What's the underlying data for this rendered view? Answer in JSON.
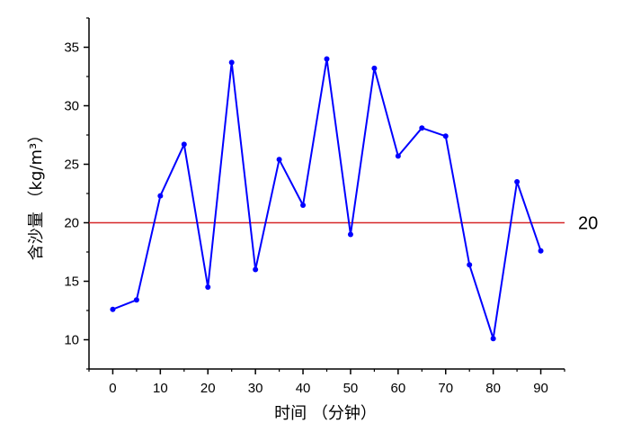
{
  "chart_data": {
    "type": "line",
    "x": [
      0,
      5,
      10,
      15,
      20,
      25,
      30,
      35,
      40,
      45,
      50,
      55,
      60,
      65,
      70,
      75,
      80,
      85,
      90
    ],
    "series": [
      {
        "values": [
          12.6,
          13.4,
          22.3,
          26.7,
          14.5,
          33.7,
          16.0,
          25.4,
          21.5,
          34.0,
          19.0,
          33.2,
          25.7,
          28.1,
          27.4,
          16.4,
          10.1,
          23.5,
          17.6
        ],
        "color": "#0000ff"
      }
    ],
    "xlabel": "时间 （分钟）",
    "ylabel": "含沙量 （kg/m³）",
    "xlim": [
      -5,
      95
    ],
    "ylim": [
      7.5,
      37.5
    ],
    "x_ticks": [
      0,
      10,
      20,
      30,
      40,
      50,
      60,
      70,
      80,
      90
    ],
    "x_tick_labels": [
      "0",
      "10",
      "20",
      "30",
      "40",
      "50",
      "60",
      "70",
      "80",
      "90"
    ],
    "y_ticks": [
      10,
      15,
      20,
      25,
      30,
      35
    ],
    "y_tick_labels": [
      "10",
      "15",
      "20",
      "25",
      "30",
      "35"
    ],
    "reference_line": {
      "y": 20,
      "label": "20",
      "color": "#d62728"
    },
    "grid": false
  }
}
